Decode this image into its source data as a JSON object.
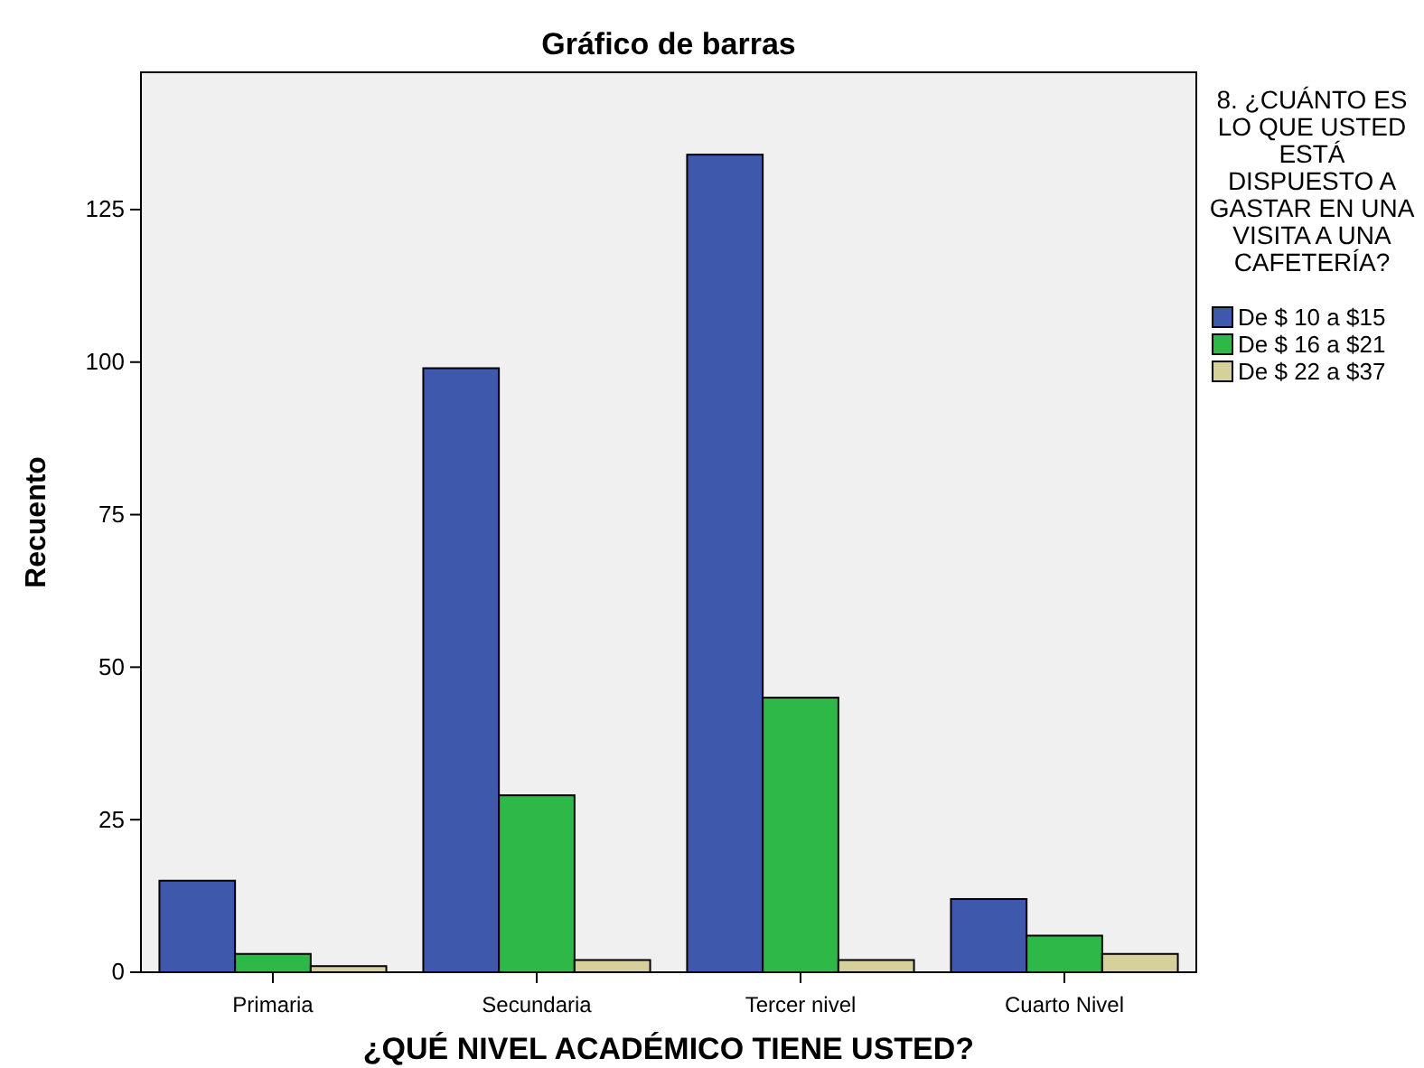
{
  "chart_data": {
    "type": "bar",
    "title": "Gráfico de barras",
    "xlabel": "¿QUÉ NIVEL ACADÉMICO TIENE USTED?",
    "ylabel": "Recuento",
    "legend_title": "8. ¿CUÁNTO ES LO QUE USTED ESTÁ DISPUESTO A GASTAR EN UNA VISITA A UNA CAFETERÍA?",
    "categories": [
      "Primaria",
      "Secundaria",
      "Tercer nivel",
      "Cuarto Nivel"
    ],
    "series": [
      {
        "name": "De $ 10 a $15",
        "color": "#3e58ac",
        "values": [
          15,
          99,
          134,
          12
        ]
      },
      {
        "name": "De $ 16 a $21",
        "color": "#2eb848",
        "values": [
          3,
          29,
          45,
          6
        ]
      },
      {
        "name": "De $ 22 a $37",
        "color": "#d6d09a",
        "values": [
          1,
          2,
          2,
          3
        ]
      }
    ],
    "ylim": [
      0,
      147.5
    ],
    "yticks": [
      0,
      25,
      50,
      75,
      100,
      125
    ],
    "grid": false,
    "legend": "right"
  }
}
